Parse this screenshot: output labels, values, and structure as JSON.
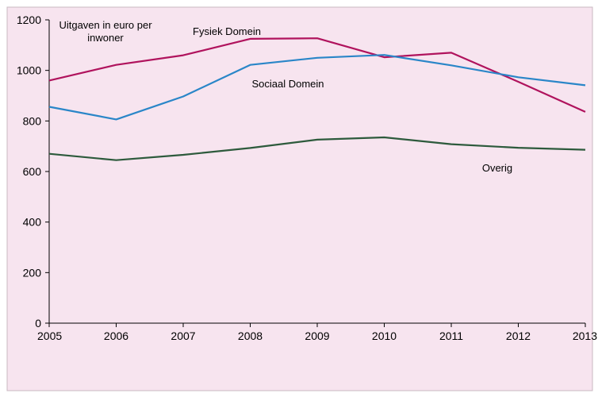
{
  "chart_data": {
    "type": "line",
    "title": "",
    "xlabel": "",
    "ylabel": "",
    "x": [
      "2005",
      "2006",
      "2007",
      "2008",
      "2009",
      "2010",
      "2011",
      "2012",
      "2013"
    ],
    "ylim": [
      0,
      1200
    ],
    "yticks": [
      0,
      200,
      400,
      600,
      800,
      1000,
      1200
    ],
    "grid": false,
    "legend": "none",
    "background_color": "#f7e4ef",
    "annotations": {
      "unit_line1": "Uitgaven in euro per",
      "unit_line2": "inwoner",
      "fysiek": "Fysiek Domein",
      "sociaal": "Sociaal Domein",
      "overig": "Overig"
    },
    "series": [
      {
        "name": "Fysiek Domein",
        "color": "#b0135d",
        "values": [
          960,
          1022,
          1060,
          1125,
          1127,
          1052,
          1070,
          955,
          836
        ]
      },
      {
        "name": "Sociaal Domein",
        "color": "#2a86c8",
        "values": [
          856,
          806,
          897,
          1022,
          1050,
          1061,
          1020,
          973,
          941
        ]
      },
      {
        "name": "Overig",
        "color": "#2d5a3c",
        "values": [
          670,
          645,
          666,
          693,
          726,
          735,
          708,
          694,
          686
        ]
      }
    ]
  }
}
